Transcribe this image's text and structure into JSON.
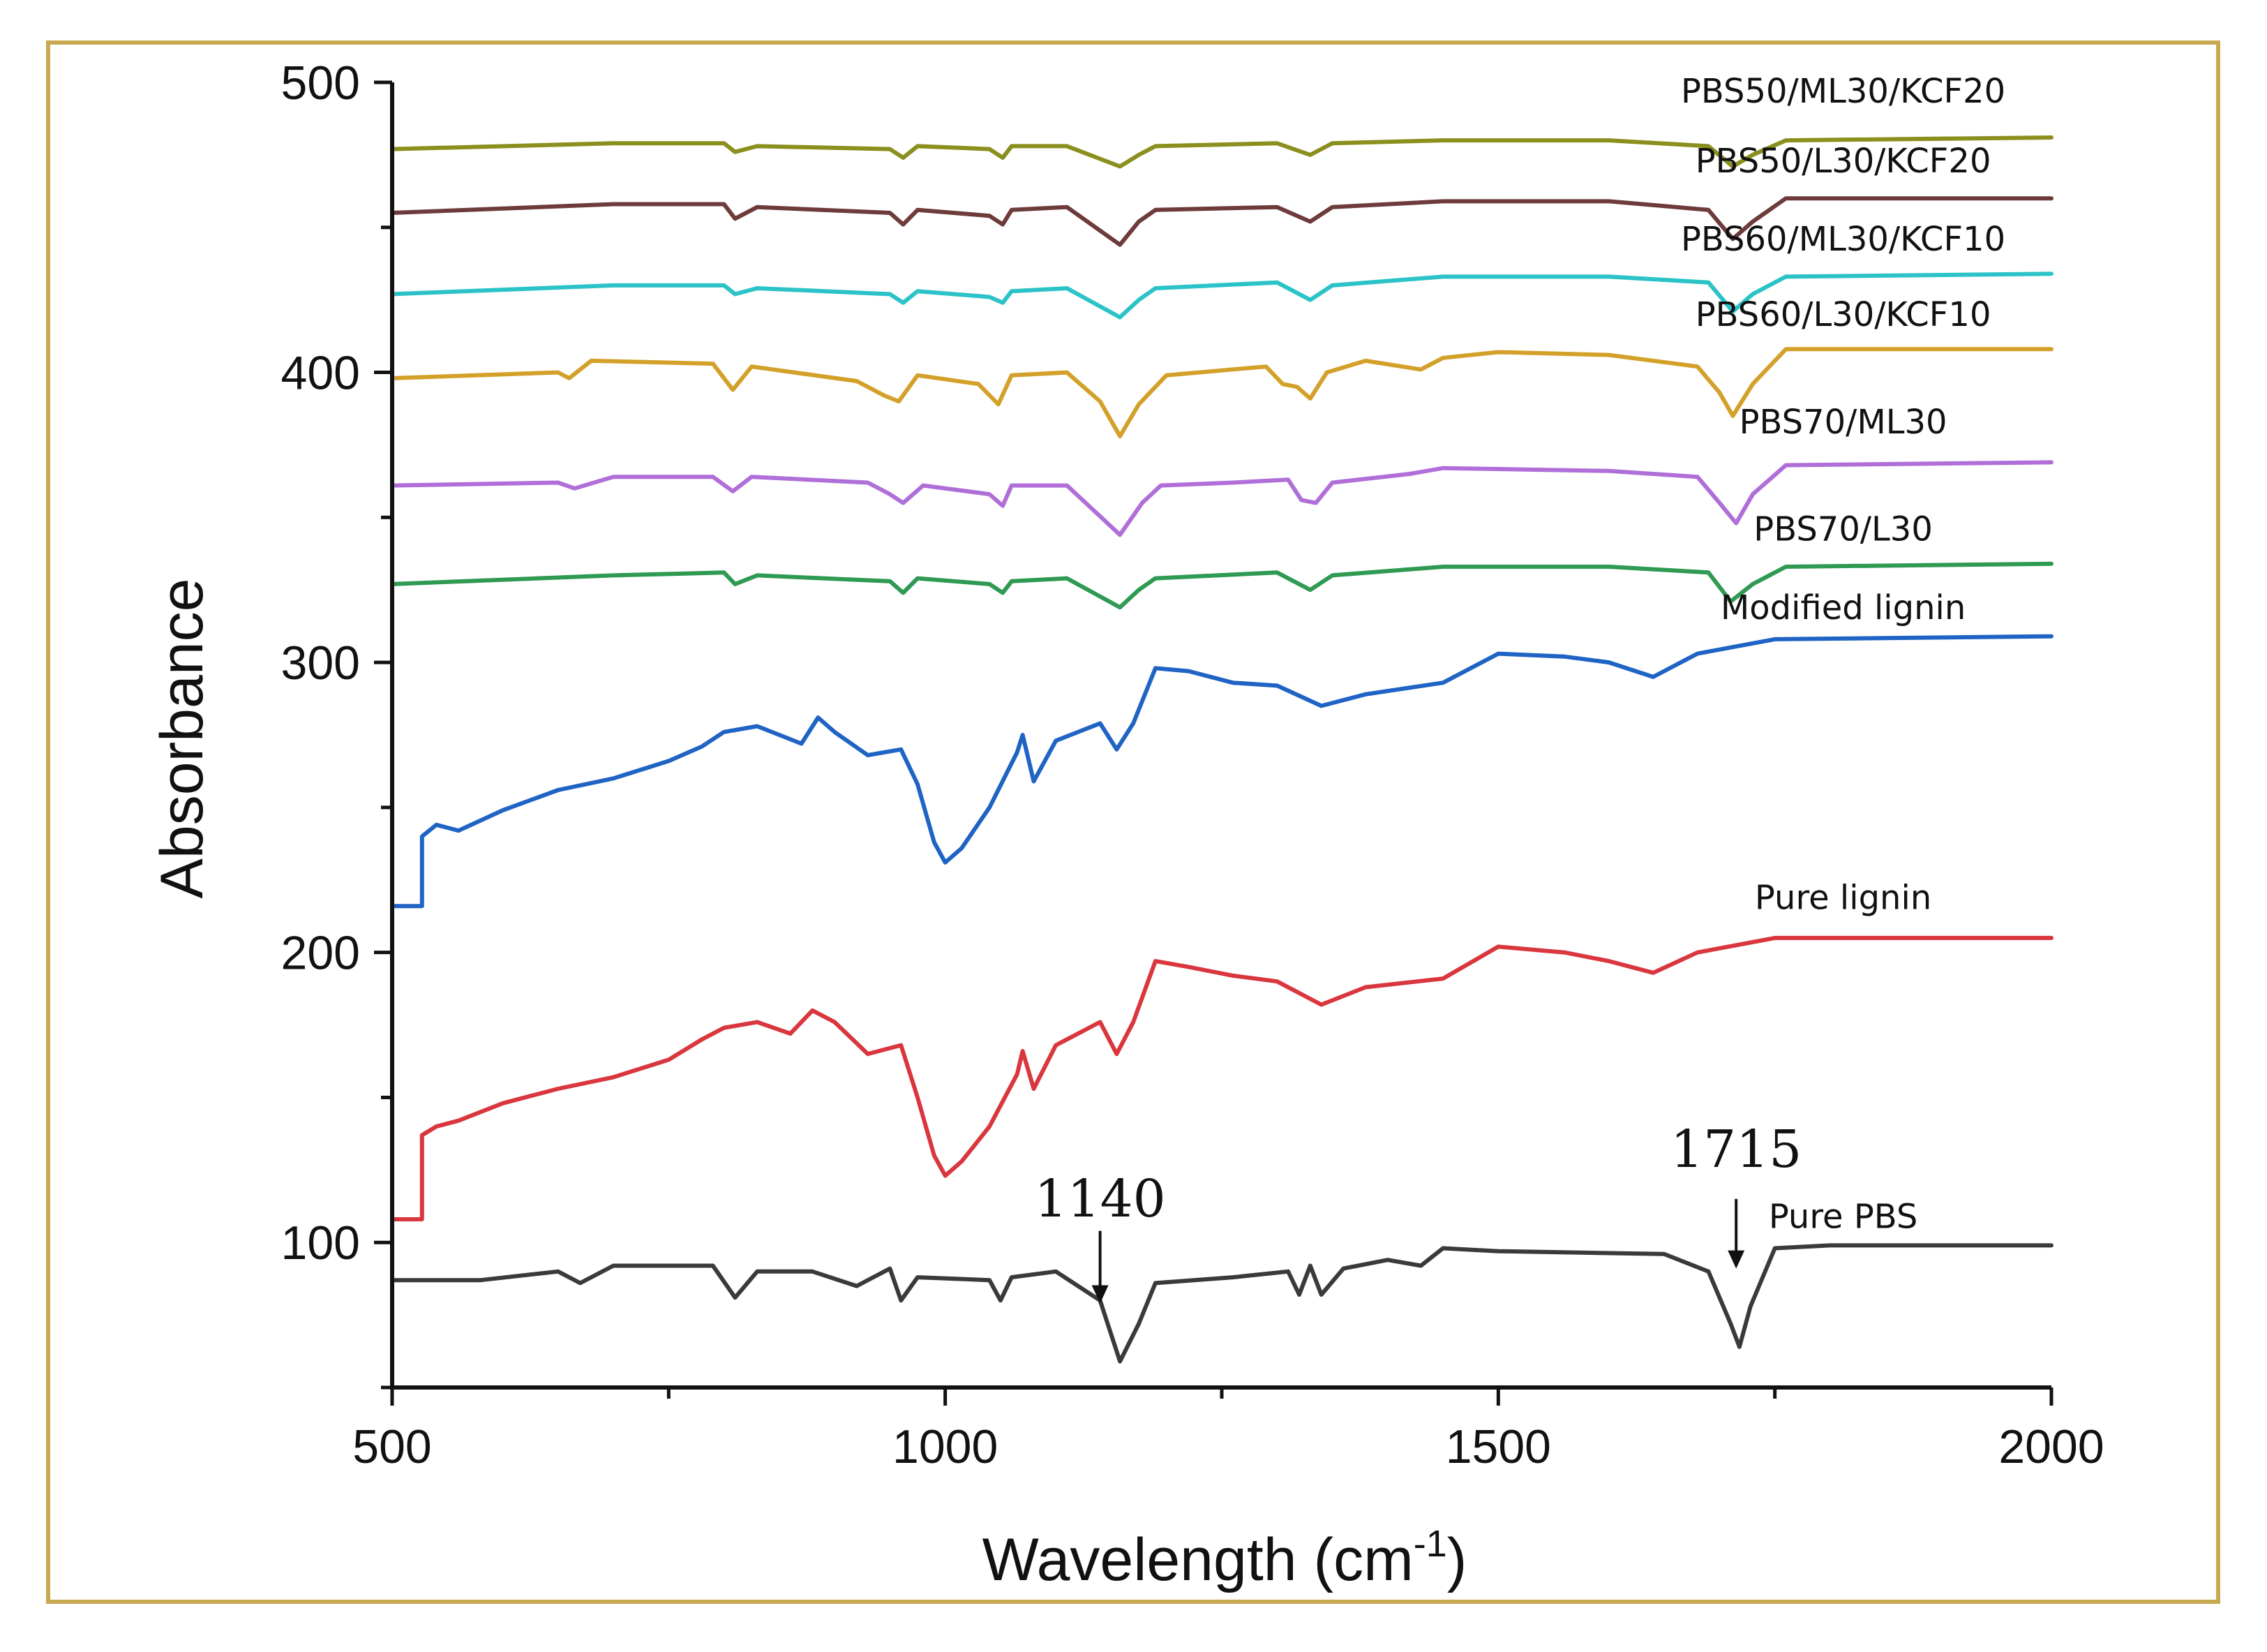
{
  "chart_data": {
    "type": "line",
    "title": "",
    "xlabel": "Wavelength (cm",
    "xlabel_sup": "-1",
    "xlabel_close": ")",
    "ylabel": "Absorbance",
    "xlim": [
      500,
      2000
    ],
    "ylim": [
      50,
      500
    ],
    "xticks": [
      500,
      1000,
      1500,
      2000
    ],
    "yticks": [
      100,
      200,
      300,
      400,
      500
    ],
    "x_minor_step": 250,
    "y_minor_step": 50,
    "grid": false,
    "series": [
      {
        "name": "Pure PBS",
        "color": "#3a3a3a",
        "label_at": [
          1755,
          105
        ],
        "points": [
          [
            500,
            87
          ],
          [
            580,
            87
          ],
          [
            650,
            90
          ],
          [
            670,
            86
          ],
          [
            700,
            92
          ],
          [
            790,
            92
          ],
          [
            810,
            81
          ],
          [
            830,
            90
          ],
          [
            880,
            90
          ],
          [
            920,
            85
          ],
          [
            950,
            91
          ],
          [
            960,
            80
          ],
          [
            975,
            88
          ],
          [
            1040,
            87
          ],
          [
            1050,
            80
          ],
          [
            1060,
            88
          ],
          [
            1100,
            90
          ],
          [
            1140,
            80
          ],
          [
            1158,
            59
          ],
          [
            1175,
            72
          ],
          [
            1190,
            86
          ],
          [
            1260,
            88
          ],
          [
            1310,
            90
          ],
          [
            1320,
            82
          ],
          [
            1330,
            92
          ],
          [
            1340,
            82
          ],
          [
            1360,
            91
          ],
          [
            1400,
            94
          ],
          [
            1430,
            92
          ],
          [
            1450,
            98
          ],
          [
            1500,
            97
          ],
          [
            1650,
            96
          ],
          [
            1690,
            90
          ],
          [
            1710,
            72
          ],
          [
            1718,
            64
          ],
          [
            1728,
            78
          ],
          [
            1750,
            98
          ],
          [
            1800,
            99
          ],
          [
            2000,
            99
          ]
        ]
      },
      {
        "name": "Pure lignin",
        "color": "#d9363e",
        "label_at": [
          1755,
          215
        ],
        "points": [
          [
            500,
            108
          ],
          [
            527,
            108
          ],
          [
            527,
            137
          ],
          [
            540,
            140
          ],
          [
            560,
            142
          ],
          [
            600,
            148
          ],
          [
            650,
            153
          ],
          [
            700,
            157
          ],
          [
            750,
            163
          ],
          [
            780,
            170
          ],
          [
            800,
            174
          ],
          [
            830,
            176
          ],
          [
            860,
            172
          ],
          [
            880,
            180
          ],
          [
            900,
            176
          ],
          [
            930,
            165
          ],
          [
            960,
            168
          ],
          [
            975,
            150
          ],
          [
            990,
            130
          ],
          [
            1000,
            123
          ],
          [
            1015,
            128
          ],
          [
            1040,
            140
          ],
          [
            1065,
            158
          ],
          [
            1070,
            166
          ],
          [
            1080,
            153
          ],
          [
            1100,
            168
          ],
          [
            1140,
            176
          ],
          [
            1155,
            165
          ],
          [
            1170,
            176
          ],
          [
            1190,
            197
          ],
          [
            1220,
            195
          ],
          [
            1260,
            192
          ],
          [
            1300,
            190
          ],
          [
            1340,
            182
          ],
          [
            1380,
            188
          ],
          [
            1450,
            191
          ],
          [
            1500,
            202
          ],
          [
            1560,
            200
          ],
          [
            1600,
            197
          ],
          [
            1640,
            193
          ],
          [
            1680,
            200
          ],
          [
            1750,
            205
          ],
          [
            2000,
            205
          ]
        ]
      },
      {
        "name": "Modified lignin",
        "color": "#1f63c4",
        "label_at": [
          1755,
          315
        ],
        "points": [
          [
            500,
            216
          ],
          [
            527,
            216
          ],
          [
            527,
            240
          ],
          [
            540,
            244
          ],
          [
            560,
            242
          ],
          [
            600,
            249
          ],
          [
            650,
            256
          ],
          [
            700,
            260
          ],
          [
            750,
            266
          ],
          [
            780,
            271
          ],
          [
            800,
            276
          ],
          [
            830,
            278
          ],
          [
            870,
            272
          ],
          [
            885,
            281
          ],
          [
            900,
            276
          ],
          [
            930,
            268
          ],
          [
            960,
            270
          ],
          [
            975,
            258
          ],
          [
            990,
            238
          ],
          [
            1000,
            231
          ],
          [
            1015,
            236
          ],
          [
            1040,
            250
          ],
          [
            1065,
            269
          ],
          [
            1070,
            275
          ],
          [
            1080,
            259
          ],
          [
            1100,
            273
          ],
          [
            1140,
            279
          ],
          [
            1155,
            270
          ],
          [
            1170,
            279
          ],
          [
            1190,
            298
          ],
          [
            1220,
            297
          ],
          [
            1260,
            293
          ],
          [
            1300,
            292
          ],
          [
            1340,
            285
          ],
          [
            1380,
            289
          ],
          [
            1450,
            293
          ],
          [
            1500,
            303
          ],
          [
            1560,
            302
          ],
          [
            1600,
            300
          ],
          [
            1640,
            295
          ],
          [
            1680,
            303
          ],
          [
            1750,
            308
          ],
          [
            2000,
            309
          ]
        ]
      },
      {
        "name": "PBS70/L30",
        "color": "#2e9a52",
        "label_at": [
          1755,
          342
        ],
        "points": [
          [
            500,
            327
          ],
          [
            700,
            330
          ],
          [
            800,
            331
          ],
          [
            810,
            327
          ],
          [
            830,
            330
          ],
          [
            950,
            328
          ],
          [
            962,
            324
          ],
          [
            975,
            329
          ],
          [
            1040,
            327
          ],
          [
            1052,
            324
          ],
          [
            1060,
            328
          ],
          [
            1110,
            329
          ],
          [
            1158,
            319
          ],
          [
            1175,
            325
          ],
          [
            1190,
            329
          ],
          [
            1300,
            331
          ],
          [
            1330,
            325
          ],
          [
            1350,
            330
          ],
          [
            1450,
            333
          ],
          [
            1600,
            333
          ],
          [
            1690,
            331
          ],
          [
            1710,
            321
          ],
          [
            1730,
            327
          ],
          [
            1760,
            333
          ],
          [
            2000,
            334
          ]
        ]
      },
      {
        "name": "PBS70/ML30",
        "color": "#b06fd8",
        "label_at": [
          1755,
          379
        ],
        "points": [
          [
            500,
            361
          ],
          [
            650,
            362
          ],
          [
            665,
            360
          ],
          [
            700,
            364
          ],
          [
            790,
            364
          ],
          [
            808,
            359
          ],
          [
            825,
            364
          ],
          [
            930,
            362
          ],
          [
            950,
            358
          ],
          [
            962,
            355
          ],
          [
            980,
            361
          ],
          [
            1040,
            358
          ],
          [
            1052,
            354
          ],
          [
            1060,
            361
          ],
          [
            1110,
            361
          ],
          [
            1158,
            344
          ],
          [
            1178,
            355
          ],
          [
            1195,
            361
          ],
          [
            1260,
            362
          ],
          [
            1310,
            363
          ],
          [
            1322,
            356
          ],
          [
            1335,
            355
          ],
          [
            1350,
            362
          ],
          [
            1420,
            365
          ],
          [
            1450,
            367
          ],
          [
            1600,
            366
          ],
          [
            1680,
            364
          ],
          [
            1700,
            355
          ],
          [
            1715,
            348
          ],
          [
            1730,
            358
          ],
          [
            1760,
            368
          ],
          [
            2000,
            369
          ]
        ]
      },
      {
        "name": "PBS60/L30/KCF10",
        "color": "#d3a12a",
        "label_at": [
          1755,
          416
        ],
        "points": [
          [
            500,
            398
          ],
          [
            650,
            400
          ],
          [
            660,
            398
          ],
          [
            680,
            404
          ],
          [
            790,
            403
          ],
          [
            808,
            394
          ],
          [
            825,
            402
          ],
          [
            920,
            397
          ],
          [
            945,
            392
          ],
          [
            958,
            390
          ],
          [
            975,
            399
          ],
          [
            1030,
            396
          ],
          [
            1048,
            389
          ],
          [
            1060,
            399
          ],
          [
            1110,
            400
          ],
          [
            1140,
            390
          ],
          [
            1158,
            378
          ],
          [
            1175,
            389
          ],
          [
            1200,
            399
          ],
          [
            1290,
            402
          ],
          [
            1305,
            396
          ],
          [
            1318,
            395
          ],
          [
            1330,
            391
          ],
          [
            1345,
            400
          ],
          [
            1380,
            404
          ],
          [
            1430,
            401
          ],
          [
            1450,
            405
          ],
          [
            1500,
            407
          ],
          [
            1600,
            406
          ],
          [
            1680,
            402
          ],
          [
            1700,
            393
          ],
          [
            1712,
            385
          ],
          [
            1730,
            396
          ],
          [
            1760,
            408
          ],
          [
            2000,
            408
          ]
        ]
      },
      {
        "name": "PBS60/ML30/KCF10",
        "color": "#2bc3c8",
        "label_at": [
          1755,
          442
        ],
        "points": [
          [
            500,
            427
          ],
          [
            700,
            430
          ],
          [
            800,
            430
          ],
          [
            810,
            427
          ],
          [
            830,
            429
          ],
          [
            950,
            427
          ],
          [
            962,
            424
          ],
          [
            975,
            428
          ],
          [
            1040,
            426
          ],
          [
            1052,
            424
          ],
          [
            1060,
            428
          ],
          [
            1110,
            429
          ],
          [
            1158,
            419
          ],
          [
            1175,
            425
          ],
          [
            1190,
            429
          ],
          [
            1300,
            431
          ],
          [
            1330,
            425
          ],
          [
            1350,
            430
          ],
          [
            1450,
            433
          ],
          [
            1600,
            433
          ],
          [
            1690,
            431
          ],
          [
            1712,
            421
          ],
          [
            1730,
            427
          ],
          [
            1760,
            433
          ],
          [
            2000,
            434
          ]
        ]
      },
      {
        "name": "PBS50/L30/KCF20",
        "color": "#6e3b3b",
        "label_at": [
          1755,
          469
        ],
        "points": [
          [
            500,
            455
          ],
          [
            700,
            458
          ],
          [
            800,
            458
          ],
          [
            810,
            453
          ],
          [
            830,
            457
          ],
          [
            950,
            455
          ],
          [
            962,
            451
          ],
          [
            975,
            456
          ],
          [
            1040,
            454
          ],
          [
            1052,
            451
          ],
          [
            1060,
            456
          ],
          [
            1110,
            457
          ],
          [
            1158,
            444
          ],
          [
            1175,
            452
          ],
          [
            1190,
            456
          ],
          [
            1300,
            457
          ],
          [
            1330,
            452
          ],
          [
            1350,
            457
          ],
          [
            1450,
            459
          ],
          [
            1600,
            459
          ],
          [
            1690,
            456
          ],
          [
            1712,
            446
          ],
          [
            1730,
            452
          ],
          [
            1760,
            460
          ],
          [
            2000,
            460
          ]
        ]
      },
      {
        "name": "PBS50/ML30/KCF20",
        "color": "#8a8f1e",
        "label_at": [
          1755,
          493
        ],
        "points": [
          [
            500,
            477
          ],
          [
            700,
            479
          ],
          [
            800,
            479
          ],
          [
            810,
            476
          ],
          [
            830,
            478
          ],
          [
            950,
            477
          ],
          [
            962,
            474
          ],
          [
            975,
            478
          ],
          [
            1040,
            477
          ],
          [
            1052,
            474
          ],
          [
            1060,
            478
          ],
          [
            1110,
            478
          ],
          [
            1158,
            471
          ],
          [
            1175,
            475
          ],
          [
            1190,
            478
          ],
          [
            1300,
            479
          ],
          [
            1330,
            475
          ],
          [
            1350,
            479
          ],
          [
            1450,
            480
          ],
          [
            1600,
            480
          ],
          [
            1690,
            478
          ],
          [
            1712,
            471
          ],
          [
            1730,
            475
          ],
          [
            1760,
            480
          ],
          [
            2000,
            481
          ]
        ]
      }
    ],
    "annotations": [
      {
        "text": "1140",
        "x": 1140,
        "arrow_from": 104,
        "arrow_to": 79,
        "text_y": 109
      },
      {
        "text": "1715",
        "x": 1715,
        "arrow_from": 115,
        "arrow_to": 91,
        "text_y": 126
      }
    ],
    "colors": {
      "axis": "#111111",
      "frame": "#c8a951"
    }
  }
}
